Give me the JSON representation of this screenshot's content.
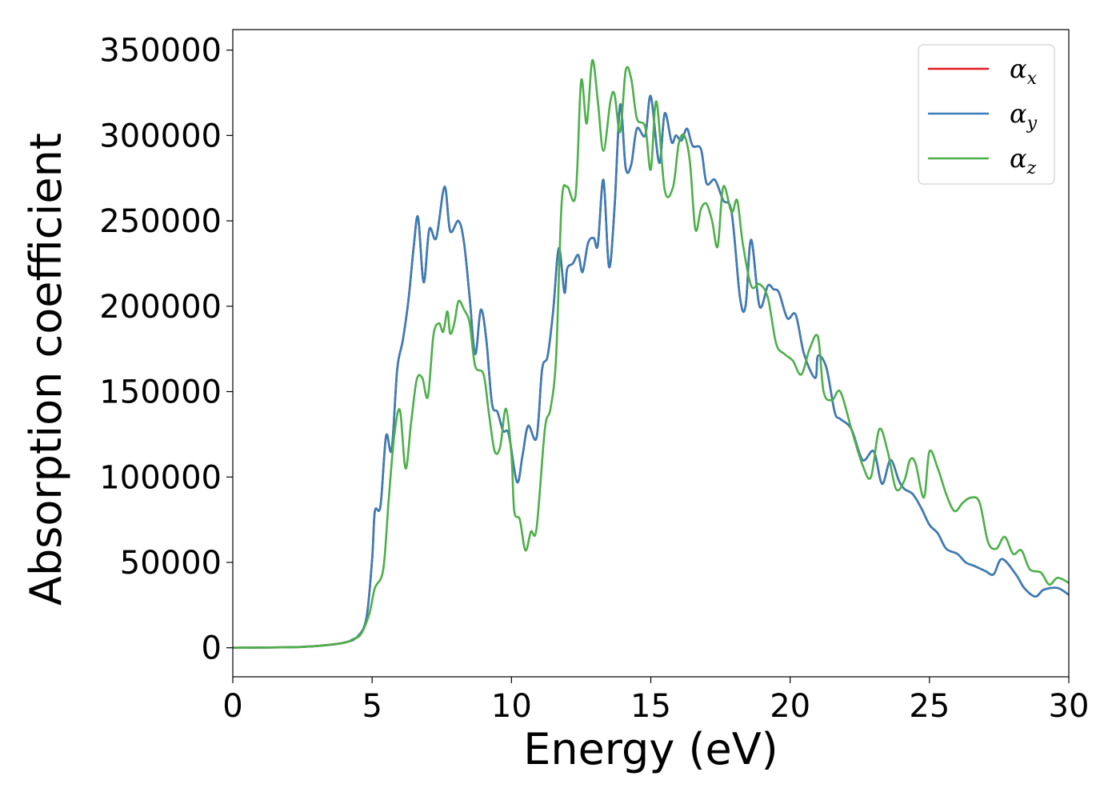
{
  "chart_data": {
    "type": "line",
    "title": "",
    "xlabel": "Energy (eV)",
    "ylabel": "Absorption coefficient",
    "xlim": [
      0,
      30
    ],
    "ylim": [
      -17000,
      362000
    ],
    "xticks": [
      0,
      5,
      10,
      15,
      20,
      25,
      30
    ],
    "yticks": [
      0,
      50000,
      100000,
      150000,
      200000,
      250000,
      300000,
      350000
    ],
    "grid": false,
    "legend_position": "top-right",
    "series": [
      {
        "name": "αx",
        "name_base": "α",
        "name_sub": "x",
        "color": "#e41a1c",
        "note_visible": "overlapped by αy",
        "x": [
          0,
          2,
          3,
          4,
          4.5,
          4.8,
          5.0,
          5.1,
          5.3,
          5.5,
          5.7,
          5.9,
          6.1,
          6.3,
          6.5,
          6.65,
          6.85,
          7.05,
          7.3,
          7.6,
          7.8,
          8.1,
          8.3,
          8.5,
          8.7,
          8.9,
          9.1,
          9.3,
          9.5,
          9.7,
          9.9,
          10.2,
          10.4,
          10.6,
          10.9,
          11.1,
          11.3,
          11.5,
          11.7,
          11.9,
          12.0,
          12.2,
          12.4,
          12.55,
          12.75,
          12.95,
          13.1,
          13.3,
          13.5,
          13.7,
          13.9,
          14.1,
          14.3,
          14.5,
          14.8,
          15.0,
          15.3,
          15.5,
          15.75,
          15.9,
          16.1,
          16.3,
          16.5,
          16.8,
          17.0,
          17.3,
          17.6,
          17.9,
          18.2,
          18.4,
          18.6,
          18.9,
          19.2,
          19.4,
          19.6,
          19.9,
          20.2,
          20.5,
          20.9,
          21.0,
          21.3,
          21.6,
          21.8,
          22.2,
          22.6,
          23.0,
          23.3,
          23.6,
          23.9,
          24.1,
          24.4,
          24.7,
          25.0,
          25.3,
          25.6,
          26.0,
          26.3,
          26.6,
          27.0,
          27.3,
          27.6,
          28.1,
          28.4,
          28.8,
          29.1,
          29.6,
          30.0
        ],
        "y": [
          0,
          300,
          1000,
          3000,
          7000,
          18000,
          52000,
          80000,
          83000,
          124000,
          116000,
          163000,
          180000,
          203000,
          236000,
          252000,
          214000,
          245000,
          240000,
          270000,
          244000,
          250000,
          237000,
          205000,
          172000,
          198000,
          180000,
          143000,
          138000,
          127000,
          125000,
          97000,
          113000,
          130000,
          123000,
          163000,
          171000,
          198000,
          234000,
          208000,
          222000,
          225000,
          230000,
          220000,
          237000,
          240000,
          236000,
          274000,
          223000,
          258000,
          318000,
          281000,
          283000,
          304000,
          300000,
          323000,
          284000,
          313000,
          296000,
          300000,
          297000,
          304000,
          294000,
          292000,
          272000,
          274000,
          262000,
          255000,
          205000,
          200000,
          239000,
          200000,
          212000,
          210000,
          208000,
          193000,
          195000,
          172000,
          158000,
          171000,
          164000,
          138000,
          134000,
          128000,
          110000,
          115000,
          96000,
          110000,
          98000,
          93000,
          90000,
          82000,
          72000,
          67000,
          58000,
          55000,
          50000,
          48000,
          45000,
          43000,
          52000,
          43000,
          35000,
          30000,
          34000,
          35000,
          31000
        ]
      },
      {
        "name": "αy",
        "name_base": "α",
        "name_sub": "y",
        "color": "#377eb8",
        "x": [
          0,
          2,
          3,
          4,
          4.5,
          4.8,
          5.0,
          5.1,
          5.3,
          5.5,
          5.7,
          5.9,
          6.1,
          6.3,
          6.5,
          6.65,
          6.85,
          7.05,
          7.3,
          7.6,
          7.8,
          8.1,
          8.3,
          8.5,
          8.7,
          8.9,
          9.1,
          9.3,
          9.5,
          9.7,
          9.9,
          10.2,
          10.4,
          10.6,
          10.9,
          11.1,
          11.3,
          11.5,
          11.7,
          11.9,
          12.0,
          12.2,
          12.4,
          12.55,
          12.75,
          12.95,
          13.1,
          13.3,
          13.5,
          13.7,
          13.9,
          14.1,
          14.3,
          14.5,
          14.8,
          15.0,
          15.3,
          15.5,
          15.75,
          15.9,
          16.1,
          16.3,
          16.5,
          16.8,
          17.0,
          17.3,
          17.6,
          17.9,
          18.2,
          18.4,
          18.6,
          18.9,
          19.2,
          19.4,
          19.6,
          19.9,
          20.2,
          20.5,
          20.9,
          21.0,
          21.3,
          21.6,
          21.8,
          22.2,
          22.6,
          23.0,
          23.3,
          23.6,
          23.9,
          24.1,
          24.4,
          24.7,
          25.0,
          25.3,
          25.6,
          26.0,
          26.3,
          26.6,
          27.0,
          27.3,
          27.6,
          28.1,
          28.4,
          28.8,
          29.1,
          29.6,
          30.0
        ],
        "y": [
          0,
          300,
          1000,
          3000,
          7000,
          18000,
          52000,
          80000,
          83000,
          124000,
          116000,
          163000,
          180000,
          203000,
          236000,
          252000,
          214000,
          245000,
          240000,
          270000,
          244000,
          250000,
          237000,
          205000,
          172000,
          198000,
          180000,
          143000,
          138000,
          127000,
          125000,
          97000,
          113000,
          130000,
          123000,
          163000,
          171000,
          198000,
          234000,
          208000,
          222000,
          225000,
          230000,
          220000,
          237000,
          240000,
          236000,
          274000,
          223000,
          258000,
          318000,
          281000,
          283000,
          304000,
          300000,
          323000,
          284000,
          313000,
          296000,
          300000,
          297000,
          304000,
          294000,
          292000,
          272000,
          274000,
          262000,
          255000,
          205000,
          200000,
          239000,
          200000,
          212000,
          210000,
          208000,
          193000,
          195000,
          172000,
          158000,
          171000,
          164000,
          138000,
          134000,
          128000,
          110000,
          115000,
          96000,
          110000,
          98000,
          93000,
          90000,
          82000,
          72000,
          67000,
          58000,
          55000,
          50000,
          48000,
          45000,
          43000,
          52000,
          43000,
          35000,
          30000,
          34000,
          35000,
          31000
        ]
      },
      {
        "name": "αz",
        "name_base": "α",
        "name_sub": "z",
        "color": "#4daf4a",
        "x": [
          0,
          2,
          3,
          4,
          4.3,
          4.6,
          4.9,
          5.1,
          5.4,
          5.6,
          5.8,
          6.0,
          6.2,
          6.4,
          6.6,
          6.8,
          7.0,
          7.2,
          7.4,
          7.55,
          7.7,
          7.8,
          7.95,
          8.1,
          8.3,
          8.5,
          8.7,
          9.0,
          9.2,
          9.4,
          9.6,
          9.8,
          10.0,
          10.1,
          10.3,
          10.5,
          10.7,
          10.9,
          11.2,
          11.4,
          11.6,
          11.8,
          12.0,
          12.3,
          12.5,
          12.7,
          12.9,
          13.1,
          13.3,
          13.55,
          13.7,
          13.9,
          14.1,
          14.3,
          14.5,
          14.8,
          15.0,
          15.2,
          15.5,
          15.8,
          16.0,
          16.2,
          16.4,
          16.6,
          16.8,
          17.0,
          17.2,
          17.4,
          17.6,
          17.9,
          18.1,
          18.3,
          18.6,
          18.9,
          19.2,
          19.5,
          19.8,
          20.1,
          20.4,
          20.7,
          21.0,
          21.2,
          21.5,
          21.8,
          22.2,
          22.6,
          22.9,
          23.2,
          23.5,
          23.8,
          24.1,
          24.3,
          24.5,
          24.8,
          25.0,
          25.3,
          25.6,
          25.9,
          26.2,
          26.5,
          26.8,
          27.1,
          27.4,
          27.7,
          28.0,
          28.3,
          28.6,
          29.0,
          29.3,
          29.6,
          30.0
        ],
        "y": [
          0,
          300,
          1000,
          3000,
          5000,
          8000,
          20000,
          35000,
          46000,
          88000,
          125000,
          139000,
          105000,
          132000,
          157000,
          158000,
          147000,
          183000,
          190000,
          185000,
          197000,
          184000,
          190000,
          203000,
          198000,
          190000,
          165000,
          160000,
          136000,
          115000,
          118000,
          140000,
          113000,
          80000,
          75000,
          57000,
          68000,
          70000,
          128000,
          140000,
          170000,
          260000,
          270000,
          265000,
          332000,
          307000,
          344000,
          320000,
          291000,
          320000,
          324000,
          302000,
          338000,
          333000,
          310000,
          305000,
          280000,
          320000,
          268000,
          270000,
          295000,
          300000,
          285000,
          245000,
          257000,
          260000,
          250000,
          235000,
          270000,
          255000,
          262000,
          237000,
          212000,
          213000,
          205000,
          178000,
          172000,
          168000,
          160000,
          175000,
          182000,
          150000,
          145000,
          150000,
          128000,
          107000,
          100000,
          128000,
          115000,
          93000,
          98000,
          110000,
          108000,
          88000,
          115000,
          105000,
          90000,
          80000,
          85000,
          88000,
          85000,
          62000,
          58000,
          65000,
          55000,
          57000,
          46000,
          44000,
          37000,
          41000,
          38000
        ]
      }
    ]
  }
}
